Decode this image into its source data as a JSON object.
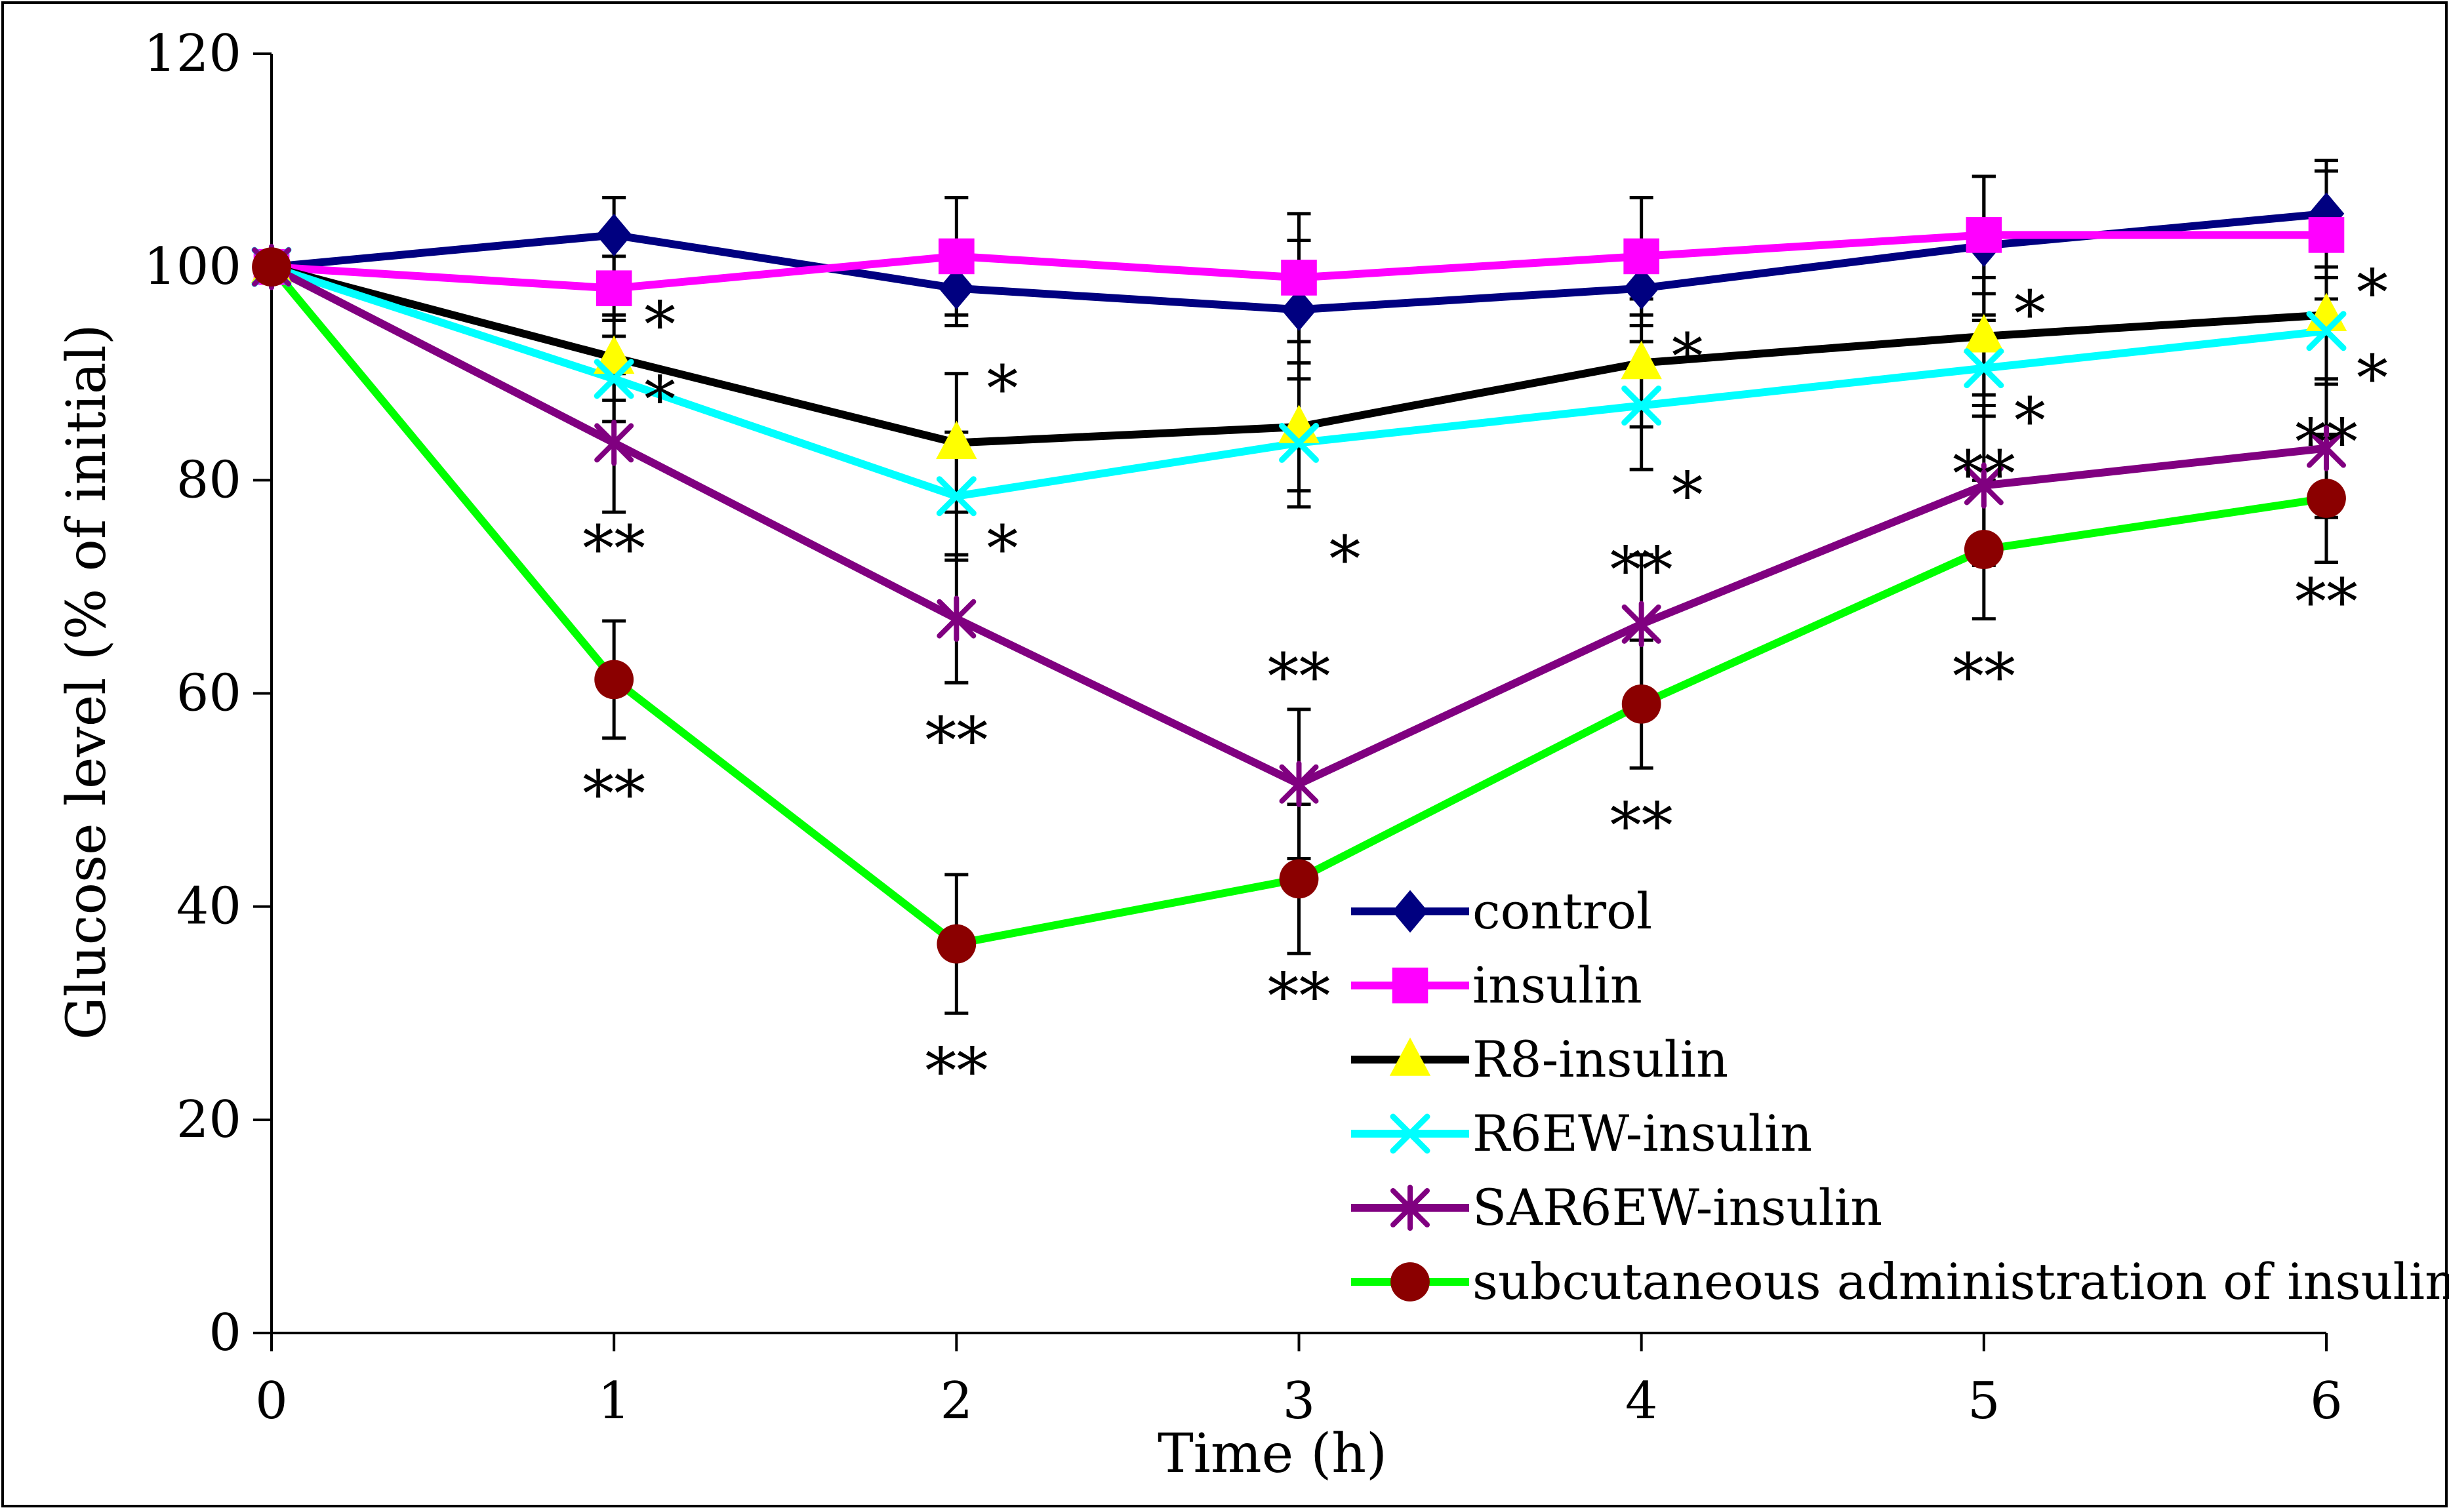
{
  "chart_data": {
    "type": "line",
    "title": "",
    "xlabel": "Time (h)",
    "ylabel": "Glucose level (% of initial)",
    "xlim": [
      0,
      6
    ],
    "ylim": [
      0,
      120
    ],
    "x_ticks": [
      "0",
      "1",
      "2",
      "3",
      "4",
      "5",
      "6"
    ],
    "y_ticks": [
      "0",
      "20",
      "40",
      "60",
      "80",
      "100",
      "120"
    ],
    "grid": false,
    "legend_position": "bottom-right",
    "x": [
      0,
      1,
      2,
      3,
      4,
      5,
      6
    ],
    "series": [
      {
        "name": "control",
        "color": "#000080",
        "marker": "diamond",
        "values": [
          100,
          103,
          98,
          96,
          98,
          102,
          105
        ],
        "errors": [
          0,
          3.5,
          3.5,
          6.5,
          3.5,
          6.5,
          5
        ]
      },
      {
        "name": "insulin",
        "color": "#ff00ff",
        "marker": "square",
        "values": [
          100,
          98,
          101,
          99,
          101,
          103,
          103
        ],
        "errors": [
          0,
          3,
          5.5,
          6,
          5.5,
          5.5,
          6
        ]
      },
      {
        "name": "R8-insulin",
        "color": "#000000",
        "marker": "triangle",
        "marker_color": "#ffff00",
        "values": [
          100,
          91.5,
          83.5,
          85,
          91,
          93.5,
          95.5
        ],
        "errors": [
          0,
          4,
          6.5,
          6,
          6,
          5.5,
          6
        ]
      },
      {
        "name": "R6EW-insulin",
        "color": "#00ffff",
        "marker": "x",
        "values": [
          100,
          89.5,
          78.5,
          83.5,
          87,
          90.5,
          94
        ],
        "errors": [
          0,
          4,
          6,
          6,
          6,
          4.5,
          5
        ]
      },
      {
        "name": "SAR6EW-insulin",
        "color": "#800080",
        "marker": "star",
        "values": [
          100,
          83.5,
          67,
          51.5,
          66.5,
          79.5,
          83
        ],
        "errors": [
          0,
          6.5,
          6,
          7,
          6.5,
          7.5,
          6.5
        ]
      },
      {
        "name": "subcutaneous administration of insulin",
        "color": "#00ff00",
        "marker": "circle",
        "marker_color": "#8b0000",
        "values": [
          100,
          61.3,
          36.5,
          42.6,
          59,
          73.5,
          78.3
        ],
        "errors": [
          0,
          5.5,
          6.5,
          7,
          6,
          6.5,
          6
        ]
      }
    ],
    "annotations": [
      {
        "x": 1,
        "y": 95,
        "text": "*"
      },
      {
        "x": 1,
        "y": 88,
        "text": "*"
      },
      {
        "x": 1,
        "y": 74,
        "text": "**"
      },
      {
        "x": 1,
        "y": 51,
        "text": "**"
      },
      {
        "x": 2,
        "y": 89,
        "text": "*"
      },
      {
        "x": 2,
        "y": 74,
        "text": "*"
      },
      {
        "x": 2,
        "y": 56,
        "text": "**"
      },
      {
        "x": 2,
        "y": 25,
        "text": "**"
      },
      {
        "x": 3,
        "y": 73,
        "text": "*"
      },
      {
        "x": 3,
        "y": 62,
        "text": "**"
      },
      {
        "x": 3,
        "y": 32,
        "text": "**"
      },
      {
        "x": 4,
        "y": 92,
        "text": "*"
      },
      {
        "x": 4,
        "y": 79,
        "text": "*"
      },
      {
        "x": 4,
        "y": 72,
        "text": "**"
      },
      {
        "x": 4,
        "y": 48,
        "text": "**"
      },
      {
        "x": 5,
        "y": 96,
        "text": "*"
      },
      {
        "x": 5,
        "y": 86,
        "text": "*"
      },
      {
        "x": 5,
        "y": 81,
        "text": "**"
      },
      {
        "x": 5,
        "y": 62,
        "text": "**"
      },
      {
        "x": 6,
        "y": 98,
        "text": "*"
      },
      {
        "x": 6,
        "y": 90,
        "text": "*"
      },
      {
        "x": 6,
        "y": 84,
        "text": "**"
      },
      {
        "x": 6,
        "y": 69,
        "text": "**"
      }
    ]
  }
}
